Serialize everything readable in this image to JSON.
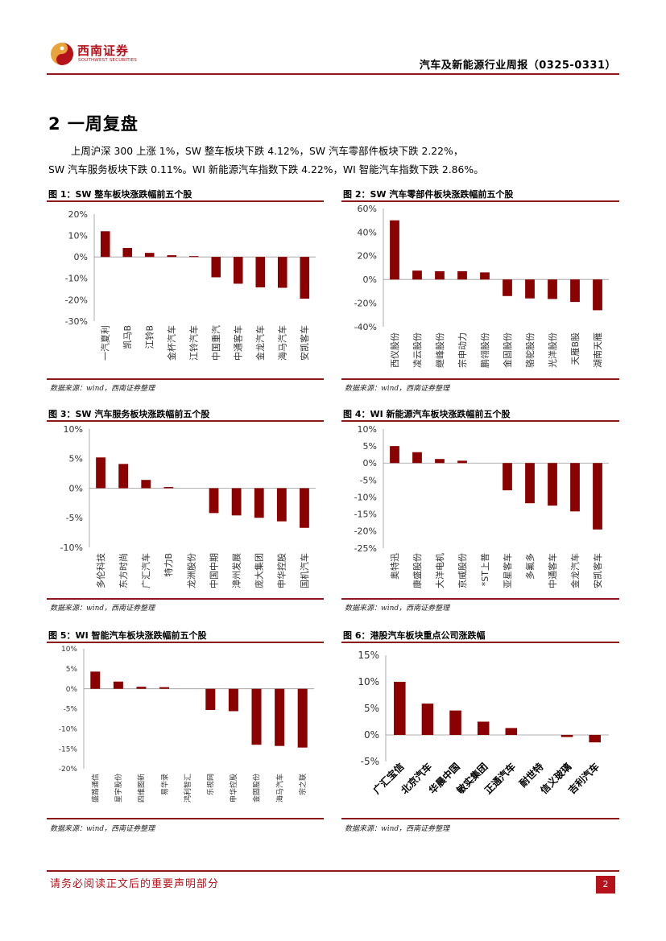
{
  "header": {
    "logo_name": "西南证券",
    "logo_sub": "SOUTHWEST SECURITIES",
    "report_title": "汽车及新能源行业周报（0325-0331）"
  },
  "section": {
    "title": "2 一周复盘",
    "para1": "上周沪深 300 上涨 1%，SW 整车板块下跌 4.12%，SW 汽车零部件板块下跌 2.22%，",
    "para2": "SW 汽车服务板块下跌 0.11%。WI 新能源汽车指数下跌 4.22%，WI 智能汽车指数下跌 2.86%。"
  },
  "figures": [
    {
      "title": "图 1：SW 整车板块涨跌幅前五个股",
      "source": "数据来源：wind，西南证券整理"
    },
    {
      "title": "图 2：SW 汽车零部件板块涨跌幅前五个股",
      "source": "数据来源：wind，西南证券整理"
    },
    {
      "title": "图 3：SW 汽车服务板块涨跌幅前五个股",
      "source": "数据来源：wind，西南证券整理"
    },
    {
      "title": "图 4：WI 新能源汽车板块涨跌幅前五个股",
      "source": "数据来源：wind，西南证券整理"
    },
    {
      "title": "图 5：WI 智能汽车板块涨跌幅前五个股",
      "source": "数据来源：wind，西南证券整理"
    },
    {
      "title": "图 6：港股汽车板块重点公司涨跌幅",
      "source": "数据来源：wind，西南证券整理"
    }
  ],
  "chart_data": [
    {
      "type": "bar",
      "title": "图 1：SW 整车板块涨跌幅前五个股",
      "categories": [
        "一汽夏利",
        "凯马B",
        "江铃B",
        "金杯汽车",
        "江铃汽车",
        "中国重汽",
        "中通客车",
        "金龙汽车",
        "海马汽车",
        "安凯客车"
      ],
      "values": [
        12,
        4.2,
        1.9,
        0.8,
        0.4,
        -9.5,
        -12.5,
        -14.2,
        -14.4,
        -19.5
      ],
      "yticks": [
        "20%",
        "10%",
        "0%",
        "-10%",
        "-20%",
        "-30%"
      ],
      "ylim": [
        -30,
        20
      ],
      "color": "#8b0000"
    },
    {
      "type": "bar",
      "title": "图 2：SW 汽车零部件板块涨跌幅前五个股",
      "categories": [
        "西仪股份",
        "凌云股份",
        "继峰股份",
        "宗申动力",
        "鹏翎股份",
        "金固股份",
        "骆驼股份",
        "光洋股份",
        "天雁B股",
        "湖南天雁"
      ],
      "values": [
        50,
        7.5,
        7,
        7,
        6,
        -14,
        -16,
        -16.5,
        -19,
        -26
      ],
      "yticks": [
        "60%",
        "40%",
        "20%",
        "0%",
        "-20%",
        "-40%"
      ],
      "ylim": [
        -40,
        60
      ],
      "color": "#8b0000"
    },
    {
      "type": "bar",
      "title": "图 3：SW 汽车服务板块涨跌幅前五个股",
      "categories": [
        "多伦科技",
        "东方时尚",
        "广汇汽车",
        "特力B",
        "龙洲股份",
        "中国中期",
        "漳州发展",
        "庞大集团",
        "申华控股",
        "国机汽车"
      ],
      "values": [
        5.2,
        4.1,
        1.4,
        0.2,
        0,
        -4.2,
        -4.6,
        -5.0,
        -5.6,
        -6.7
      ],
      "yticks": [
        "10%",
        "5%",
        "0%",
        "-5%",
        "-10%"
      ],
      "ylim": [
        -10,
        10
      ],
      "color": "#8b0000"
    },
    {
      "type": "bar",
      "title": "图 4：WI 新能源汽车板块涨跌幅前五个股",
      "categories": [
        "奥特迅",
        "康盛股份",
        "大洋电机",
        "京威股份",
        "*ST上普",
        "亚星客车",
        "多氟多",
        "中通客车",
        "金龙汽车",
        "安凯客车"
      ],
      "values": [
        5,
        3.2,
        1.2,
        0.7,
        0,
        -8,
        -11.8,
        -12.5,
        -14.2,
        -19.5
      ],
      "yticks": [
        "10%",
        "5%",
        "0%",
        "-5%",
        "-10%",
        "-15%",
        "-20%",
        "-25%"
      ],
      "ylim": [
        -25,
        10
      ],
      "color": "#8b0000"
    },
    {
      "type": "bar",
      "title": "图 5：WI 智能汽车板块涨跌幅前五个股",
      "categories": [
        "盛路通信",
        "星宇股份",
        "四维图新",
        "易华录",
        "鸿利智汇",
        "乐视网",
        "申华控股",
        "金固股份",
        "海马汽车",
        "宗之联"
      ],
      "values": [
        4.3,
        1.8,
        0.5,
        0.4,
        0,
        -5.3,
        -5.6,
        -14,
        -14.3,
        -14.7
      ],
      "yticks": [
        "10%",
        "5%",
        "0%",
        "-5%",
        "-10%",
        "-15%",
        "-20%"
      ],
      "ylim": [
        -20,
        10
      ],
      "color": "#8b0000"
    },
    {
      "type": "bar",
      "title": "图 6：港股汽车板块重点公司涨跌幅",
      "categories": [
        "广汇宝信",
        "北京汽车",
        "华晨中国",
        "敏实集团",
        "正通汽车",
        "耐世特",
        "信义玻璃",
        "吉利汽车"
      ],
      "values": [
        10,
        5.9,
        4.6,
        2.5,
        1.3,
        0,
        -0.4,
        -1.4
      ],
      "yticks": [
        "15%",
        "10%",
        "5%",
        "0%",
        "-5%"
      ],
      "ylim": [
        -5,
        15
      ],
      "color": "#8b0000"
    }
  ],
  "footer": {
    "note": "请务必阅读正文后的重要声明部分",
    "page": "2"
  }
}
